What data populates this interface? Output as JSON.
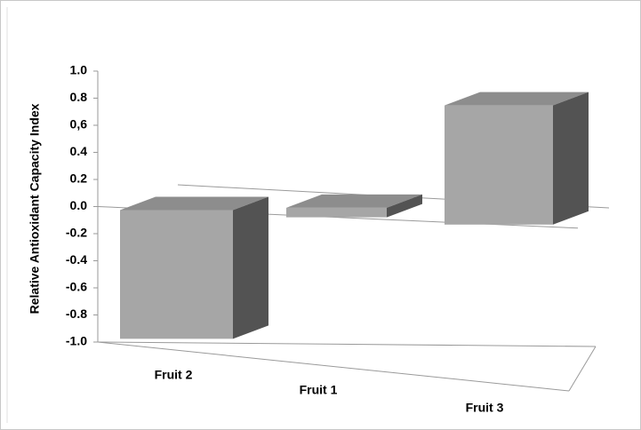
{
  "chart_data": {
    "type": "bar3d",
    "y_label": "Relative Antioxidant Capacity Index",
    "categories": [
      "Fruit 2",
      "Fruit 1",
      "Fruit 3"
    ],
    "values": [
      -0.95,
      0.07,
      0.88
    ],
    "color": "#a6a6a6",
    "ylim": [
      -1,
      1
    ],
    "yticks": [
      {
        "value": 1,
        "label": "1.0"
      },
      0.8,
      {
        "value": 0.6,
        "label": "0,6"
      },
      0.4,
      0.2,
      {
        "value": 0,
        "label": "0.0"
      },
      -0.2,
      -0.4,
      -0.6,
      -0.8,
      {
        "value": -1,
        "label": "-1.0"
      }
    ],
    "grid": false
  }
}
